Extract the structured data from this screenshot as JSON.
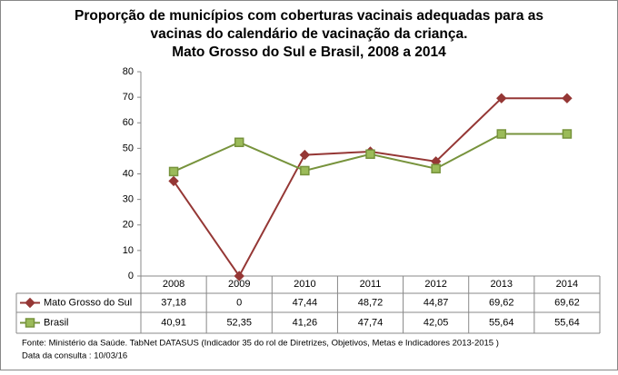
{
  "chart_data": {
    "type": "line",
    "title": [
      "Proporção de municípios com coberturas vacinais adequadas para as",
      "vacinas do calendário de vacinação da criança.",
      "Mato Grosso do Sul e Brasil, 2008 a 2014"
    ],
    "categories": [
      "2008",
      "2009",
      "2010",
      "2011",
      "2012",
      "2013",
      "2014"
    ],
    "series": [
      {
        "name": "Mato Grosso do Sul",
        "color": "#953735",
        "marker": "diamond",
        "values": [
          37.18,
          0,
          47.44,
          48.72,
          44.87,
          69.62,
          69.62
        ],
        "value_labels": [
          "37,18",
          "0",
          "47,44",
          "48,72",
          "44,87",
          "69,62",
          "69,62"
        ]
      },
      {
        "name": "Brasil",
        "color": "#77933c",
        "marker": "square",
        "values": [
          40.91,
          52.35,
          41.26,
          47.74,
          42.05,
          55.64,
          55.64
        ],
        "value_labels": [
          "40,91",
          "52,35",
          "41,26",
          "47,74",
          "42,05",
          "55,64",
          "55,64"
        ]
      }
    ],
    "ylim": [
      0,
      80
    ],
    "yticks": [
      0,
      10,
      20,
      30,
      40,
      50,
      60,
      70,
      80
    ],
    "grid": false,
    "notes": [
      "Fonte: Ministério da Saúde. TabNet DATASUS (Indicador 35 do rol de Diretrizes, Objetivos, Metas e Indicadores 2013-2015 )",
      "Data da consulta : 10/03/16"
    ]
  }
}
